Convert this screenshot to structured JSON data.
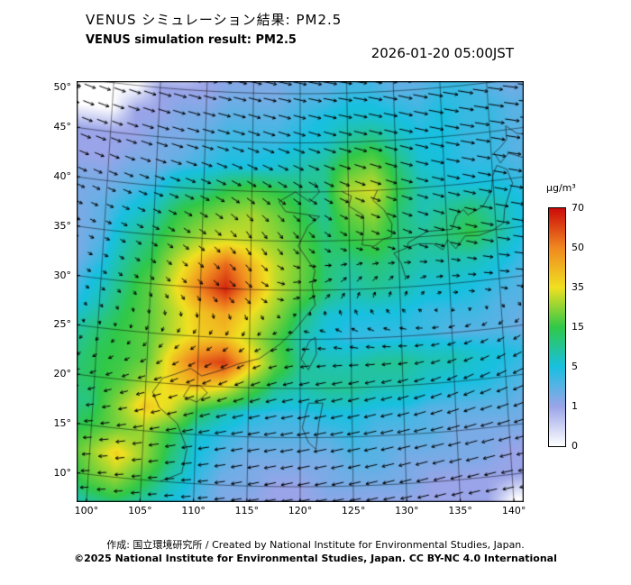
{
  "header": {
    "title_ja": "VENUS シミュレーション結果: PM2.5",
    "title_en": "VENUS simulation result: PM2.5",
    "timestamp": "2026-01-20 05:00JST"
  },
  "footer": {
    "credit": "作成: 国立環境研究所 / Created by National Institute for Environmental Studies, Japan.",
    "copyright": "©2025 National Institute for Environmental Studies, Japan. CC BY-NC 4.0 International"
  },
  "colorbar": {
    "unit": "µg/m³",
    "tick_labels": [
      "70",
      "50",
      "35",
      "15",
      "5",
      "1",
      "0"
    ]
  },
  "axes": {
    "lat_values": [
      50,
      45,
      40,
      35,
      30,
      25,
      20,
      15,
      10
    ],
    "lat_labels": [
      "50°",
      "45°",
      "40°",
      "35°",
      "30°",
      "25°",
      "20°",
      "15°",
      "10°"
    ],
    "lon_values": [
      100,
      105,
      110,
      115,
      120,
      125,
      130,
      135,
      140
    ],
    "lon_labels": [
      "100°",
      "105°",
      "110°",
      "115°",
      "120°",
      "125°",
      "130°",
      "135°",
      "140°"
    ]
  },
  "chart_data": {
    "type": "heatmap",
    "variable": "PM2.5",
    "unit": "µg/m³",
    "title": "VENUS simulation result: PM2.5",
    "legend_position": "right",
    "grid": true,
    "levels": [
      0,
      1,
      5,
      15,
      35,
      50,
      70
    ],
    "level_colors": [
      "#ffffff",
      "#9aa4e8",
      "#18c0e0",
      "#30c848",
      "#f0e020",
      "#f08820",
      "#cc0a0a"
    ],
    "pm25": {
      "lat_start": 52.5,
      "lat_step": -2.5,
      "lon_start": 97.5,
      "lon_step": 2.5,
      "values": [
        [
          0,
          0,
          0,
          0,
          0,
          1,
          1,
          1,
          2,
          2,
          2,
          3,
          3,
          2,
          2,
          3,
          3,
          2,
          1
        ],
        [
          0,
          0,
          0,
          1,
          1,
          1,
          2,
          2,
          2,
          3,
          3,
          4,
          4,
          3,
          3,
          4,
          4,
          3,
          2
        ],
        [
          0,
          0,
          1,
          1,
          2,
          2,
          3,
          3,
          3,
          4,
          5,
          6,
          6,
          5,
          4,
          5,
          4,
          4,
          3
        ],
        [
          1,
          1,
          1,
          2,
          2,
          3,
          4,
          4,
          4,
          5,
          6,
          10,
          12,
          8,
          5,
          5,
          4,
          4,
          3
        ],
        [
          1,
          1,
          2,
          2,
          3,
          4,
          5,
          5,
          6,
          8,
          10,
          18,
          22,
          12,
          6,
          5,
          4,
          4,
          3
        ],
        [
          2,
          2,
          3,
          4,
          8,
          10,
          15,
          18,
          15,
          12,
          10,
          28,
          32,
          15,
          8,
          6,
          5,
          5,
          4
        ],
        [
          2,
          3,
          5,
          8,
          15,
          20,
          25,
          28,
          22,
          15,
          10,
          20,
          25,
          12,
          8,
          10,
          12,
          8,
          5
        ],
        [
          2,
          3,
          8,
          12,
          20,
          28,
          32,
          30,
          25,
          18,
          12,
          15,
          18,
          12,
          10,
          12,
          15,
          10,
          5
        ],
        [
          2,
          4,
          10,
          15,
          30,
          42,
          55,
          42,
          30,
          22,
          12,
          10,
          12,
          10,
          8,
          8,
          8,
          6,
          4
        ],
        [
          3,
          6,
          12,
          20,
          35,
          52,
          66,
          46,
          30,
          20,
          12,
          8,
          10,
          8,
          6,
          6,
          5,
          4,
          3
        ],
        [
          4,
          8,
          14,
          20,
          30,
          40,
          45,
          35,
          25,
          12,
          6,
          5,
          5,
          5,
          4,
          4,
          4,
          3,
          3
        ],
        [
          8,
          12,
          16,
          20,
          30,
          38,
          40,
          30,
          18,
          8,
          5,
          4,
          4,
          4,
          4,
          3,
          3,
          3,
          2
        ],
        [
          10,
          14,
          16,
          20,
          40,
          55,
          62,
          40,
          20,
          10,
          8,
          8,
          10,
          10,
          8,
          8,
          6,
          5,
          4
        ],
        [
          12,
          14,
          18,
          28,
          38,
          42,
          35,
          20,
          10,
          8,
          10,
          10,
          8,
          8,
          6,
          5,
          5,
          4,
          3
        ],
        [
          10,
          12,
          25,
          40,
          32,
          15,
          8,
          5,
          4,
          4,
          5,
          5,
          4,
          4,
          3,
          3,
          3,
          3,
          2
        ],
        [
          12,
          16,
          22,
          26,
          15,
          6,
          4,
          3,
          3,
          3,
          3,
          4,
          3,
          3,
          3,
          2,
          2,
          2,
          2
        ],
        [
          15,
          25,
          38,
          26,
          12,
          5,
          3,
          2,
          2,
          2,
          2,
          3,
          3,
          2,
          2,
          2,
          2,
          1,
          1
        ],
        [
          10,
          20,
          26,
          16,
          8,
          4,
          2,
          2,
          1,
          1,
          2,
          2,
          2,
          2,
          1,
          1,
          1,
          1,
          1
        ],
        [
          5,
          10,
          12,
          8,
          5,
          3,
          2,
          1,
          1,
          1,
          1,
          1,
          1,
          1,
          1,
          1,
          1,
          0,
          0
        ]
      ]
    },
    "wind": {
      "lat_start": 55,
      "lat_step": -5,
      "lon_start": 95,
      "lon_step": 5,
      "u": [
        [
          10,
          10,
          10,
          10,
          10,
          11,
          11,
          12,
          12,
          12,
          12
        ],
        [
          9,
          9,
          10,
          10,
          10,
          10,
          11,
          11,
          12,
          12,
          12
        ],
        [
          8,
          8,
          9,
          9,
          9,
          9,
          10,
          10,
          11,
          11,
          11
        ],
        [
          6,
          6,
          7,
          7,
          6,
          6,
          7,
          8,
          9,
          10,
          10
        ],
        [
          3,
          3,
          4,
          4,
          3,
          3,
          4,
          6,
          8,
          10,
          10
        ],
        [
          2,
          2,
          2,
          3,
          5,
          6,
          3,
          2,
          4,
          6,
          8
        ],
        [
          0,
          0,
          -1,
          -2,
          -2,
          -4,
          -5,
          -5,
          -5,
          -4,
          -4
        ],
        [
          -3,
          -4,
          -5,
          -6,
          -7,
          -8,
          -8,
          -8,
          -8,
          -8,
          -8
        ],
        [
          -5,
          -6,
          -7,
          -8,
          -9,
          -10,
          -10,
          -10,
          -10,
          -10,
          -10
        ],
        [
          -5,
          -6,
          -6,
          -7,
          -8,
          -9,
          -9,
          -9,
          -9,
          -9,
          -9
        ],
        [
          -4,
          -5,
          -5,
          -6,
          -7,
          -8,
          -8,
          -8,
          -8,
          -8,
          -8
        ]
      ],
      "v": [
        [
          -2,
          -2,
          -2,
          -2,
          -2,
          -2,
          -2,
          -2,
          -3,
          -3,
          -3
        ],
        [
          -2,
          -2,
          -2,
          -2,
          -2,
          -2,
          -2,
          -3,
          -3,
          -3,
          -3
        ],
        [
          -2,
          -2,
          -2,
          -2,
          -3,
          -3,
          -3,
          -3,
          -3,
          -3,
          -3
        ],
        [
          -2,
          -2,
          -2,
          -3,
          -4,
          -4,
          -3,
          -3,
          -3,
          -3,
          -3
        ],
        [
          -1,
          -1,
          -2,
          -3,
          -5,
          -4,
          -2,
          -3,
          -3,
          -3,
          -3
        ],
        [
          -1,
          -1,
          -2,
          -3,
          -4,
          2,
          4,
          3,
          0,
          -1,
          -2
        ],
        [
          -1,
          -1,
          -2,
          -2,
          -2,
          0,
          2,
          1,
          -1,
          -2,
          -2
        ],
        [
          -2,
          -2,
          -2,
          -3,
          -3,
          -2,
          -2,
          -2,
          -3,
          -3,
          -3
        ],
        [
          -1,
          -1,
          -2,
          -2,
          -2,
          -2,
          -2,
          -2,
          -2,
          -2,
          -2
        ],
        [
          -1,
          -1,
          -1,
          -1,
          -2,
          -2,
          -2,
          -2,
          -2,
          -1,
          -1
        ],
        [
          -1,
          -1,
          -1,
          -1,
          -1,
          -1,
          -1,
          -1,
          -1,
          -1,
          -1
        ]
      ]
    },
    "coastlines": [
      [
        [
          41,
          121.5
        ],
        [
          40,
          122
        ],
        [
          39,
          121
        ],
        [
          40,
          119.5
        ],
        [
          39,
          117.8
        ],
        [
          38,
          118.5
        ],
        [
          37.5,
          122
        ],
        [
          36.5,
          120.8
        ],
        [
          34.5,
          119.8
        ],
        [
          32,
          121.5
        ],
        [
          30.5,
          121.2
        ],
        [
          28.5,
          121.5
        ],
        [
          26,
          119.5
        ],
        [
          24.5,
          118
        ],
        [
          23,
          116
        ],
        [
          22.4,
          114
        ],
        [
          21.5,
          111.8
        ],
        [
          21,
          110.4
        ],
        [
          21.7,
          109.3
        ],
        [
          21,
          107.8
        ],
        [
          20.5,
          106.6
        ],
        [
          19,
          105.7
        ],
        [
          17.5,
          106.4
        ],
        [
          16,
          108.2
        ],
        [
          13.5,
          109.2
        ],
        [
          11,
          108.8
        ],
        [
          10,
          106.8
        ]
      ],
      [
        [
          40,
          124.3
        ],
        [
          39.5,
          125.3
        ],
        [
          38.5,
          125
        ],
        [
          37.5,
          126.5
        ],
        [
          36,
          126.5
        ],
        [
          34.5,
          126.3
        ],
        [
          34.3,
          127.5
        ],
        [
          35,
          128.5
        ],
        [
          35.2,
          129.3
        ],
        [
          36.5,
          129.4
        ],
        [
          38,
          128.6
        ],
        [
          39,
          127.5
        ],
        [
          40,
          128
        ]
      ],
      [
        [
          31,
          130.6
        ],
        [
          32.5,
          130.2
        ],
        [
          33.5,
          129.5
        ],
        [
          34,
          130.9
        ],
        [
          34.3,
          132
        ],
        [
          34.2,
          133.5
        ],
        [
          33.5,
          134.5
        ],
        [
          34.5,
          135
        ],
        [
          33.5,
          135.8
        ],
        [
          34.7,
          136.8
        ],
        [
          34.6,
          138.2
        ],
        [
          35,
          139.7
        ],
        [
          35.6,
          140.8
        ],
        [
          37,
          141
        ],
        [
          38.3,
          141.5
        ],
        [
          39.5,
          142
        ],
        [
          41,
          141.5
        ],
        [
          41.5,
          140.5
        ],
        [
          40.5,
          140
        ],
        [
          39,
          139.8
        ],
        [
          37.5,
          138.8
        ],
        [
          36.8,
          137.2
        ],
        [
          37.4,
          136.8
        ],
        [
          36.8,
          136
        ],
        [
          35.5,
          135.5
        ],
        [
          35.5,
          133
        ],
        [
          35,
          132
        ],
        [
          34.5,
          131
        ],
        [
          34,
          130.9
        ]
      ],
      [
        [
          41.7,
          140.9
        ],
        [
          42.8,
          140.3
        ],
        [
          43.3,
          141
        ],
        [
          44,
          141.7
        ],
        [
          45.4,
          141.7
        ],
        [
          44.5,
          142.8
        ],
        [
          44,
          144.8
        ],
        [
          43,
          145.5
        ],
        [
          42,
          143.2
        ],
        [
          42.6,
          141.8
        ],
        [
          41.7,
          140.9
        ]
      ],
      [
        [
          21.9,
          120.8
        ],
        [
          23.5,
          121.6
        ],
        [
          25.2,
          121.5
        ],
        [
          24.8,
          120.9
        ],
        [
          23,
          120.1
        ],
        [
          21.9,
          120.8
        ]
      ],
      [
        [
          20,
          110.3
        ],
        [
          19.3,
          111
        ],
        [
          18.3,
          110
        ],
        [
          18.8,
          108.7
        ],
        [
          19.9,
          109.3
        ],
        [
          20,
          110.3
        ]
      ],
      [
        [
          18.5,
          120.8
        ],
        [
          16,
          120.2
        ],
        [
          14.5,
          120.8
        ],
        [
          13.8,
          121.5
        ],
        [
          16.5,
          121.8
        ],
        [
          18.5,
          122.2
        ],
        [
          18.5,
          120.8
        ]
      ]
    ]
  }
}
